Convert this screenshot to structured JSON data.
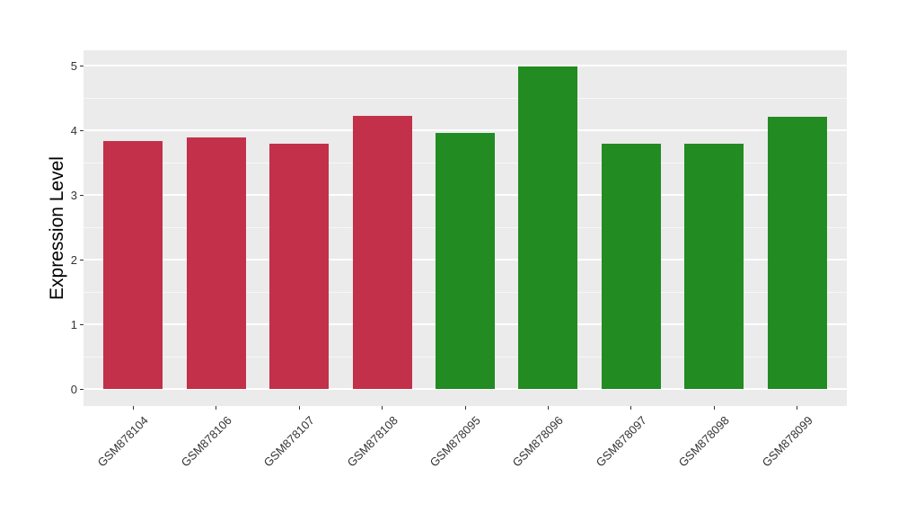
{
  "chart_data": {
    "type": "bar",
    "title": "",
    "xlabel": "",
    "ylabel": "Expression Level",
    "categories": [
      "GSM878104",
      "GSM878106",
      "GSM878107",
      "GSM878108",
      "GSM878095",
      "GSM878096",
      "GSM878097",
      "GSM878098",
      "GSM878099"
    ],
    "values": [
      3.84,
      3.89,
      3.79,
      4.22,
      3.96,
      4.99,
      3.79,
      3.79,
      4.21
    ],
    "bar_colors": [
      "#C23049",
      "#C23049",
      "#C23049",
      "#C23049",
      "#228B22",
      "#228B22",
      "#228B22",
      "#228B22",
      "#228B22"
    ],
    "group_colors": {
      "red_group": "#C23049",
      "green_group": "#228B22"
    },
    "y_ticks": [
      0,
      1,
      2,
      3,
      4,
      5
    ],
    "ylim": [
      0,
      5
    ],
    "grid": "on",
    "legend": "none",
    "panel_background": "#EBEBEB",
    "gridline_color": "#FFFFFF"
  }
}
